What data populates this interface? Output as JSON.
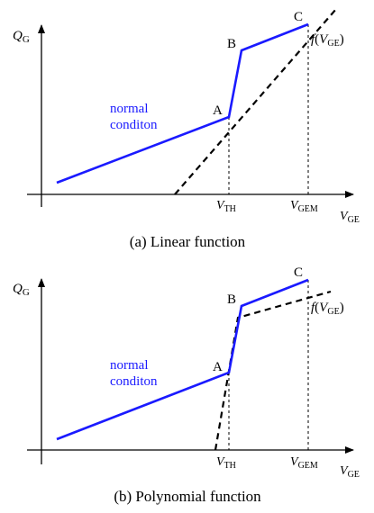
{
  "colors": {
    "curve": "#1a1aff",
    "func": "#000000",
    "axis": "#000000",
    "label_blue": "#1a1aff"
  },
  "panel_a": {
    "y_axis": {
      "main": "Q",
      "sub": "G"
    },
    "x_axis": {
      "main": "V",
      "sub": "GE"
    },
    "point_a": "A",
    "point_b": "B",
    "point_c": "C",
    "region_line1": "normal",
    "region_line2": "conditon",
    "func": {
      "prefix": "f",
      "open": "(",
      "main": "V",
      "sub": "GE",
      "close": ")"
    },
    "tick_th": {
      "main": "V",
      "sub": "TH"
    },
    "tick_gem": {
      "main": "V",
      "sub": "GEM"
    },
    "caption": "(a) Linear function"
  },
  "panel_b": {
    "y_axis": {
      "main": "Q",
      "sub": "G"
    },
    "x_axis": {
      "main": "V",
      "sub": "GE"
    },
    "point_a": "A",
    "point_b": "B",
    "point_c": "C",
    "region_line1": "normal",
    "region_line2": "conditon",
    "func": {
      "prefix": "f",
      "open": "(",
      "main": "V",
      "sub": "GE",
      "close": ")"
    },
    "tick_th": {
      "main": "V",
      "sub": "TH"
    },
    "tick_gem": {
      "main": "V",
      "sub": "GEM"
    },
    "caption": "(b) Polynomial function"
  }
}
